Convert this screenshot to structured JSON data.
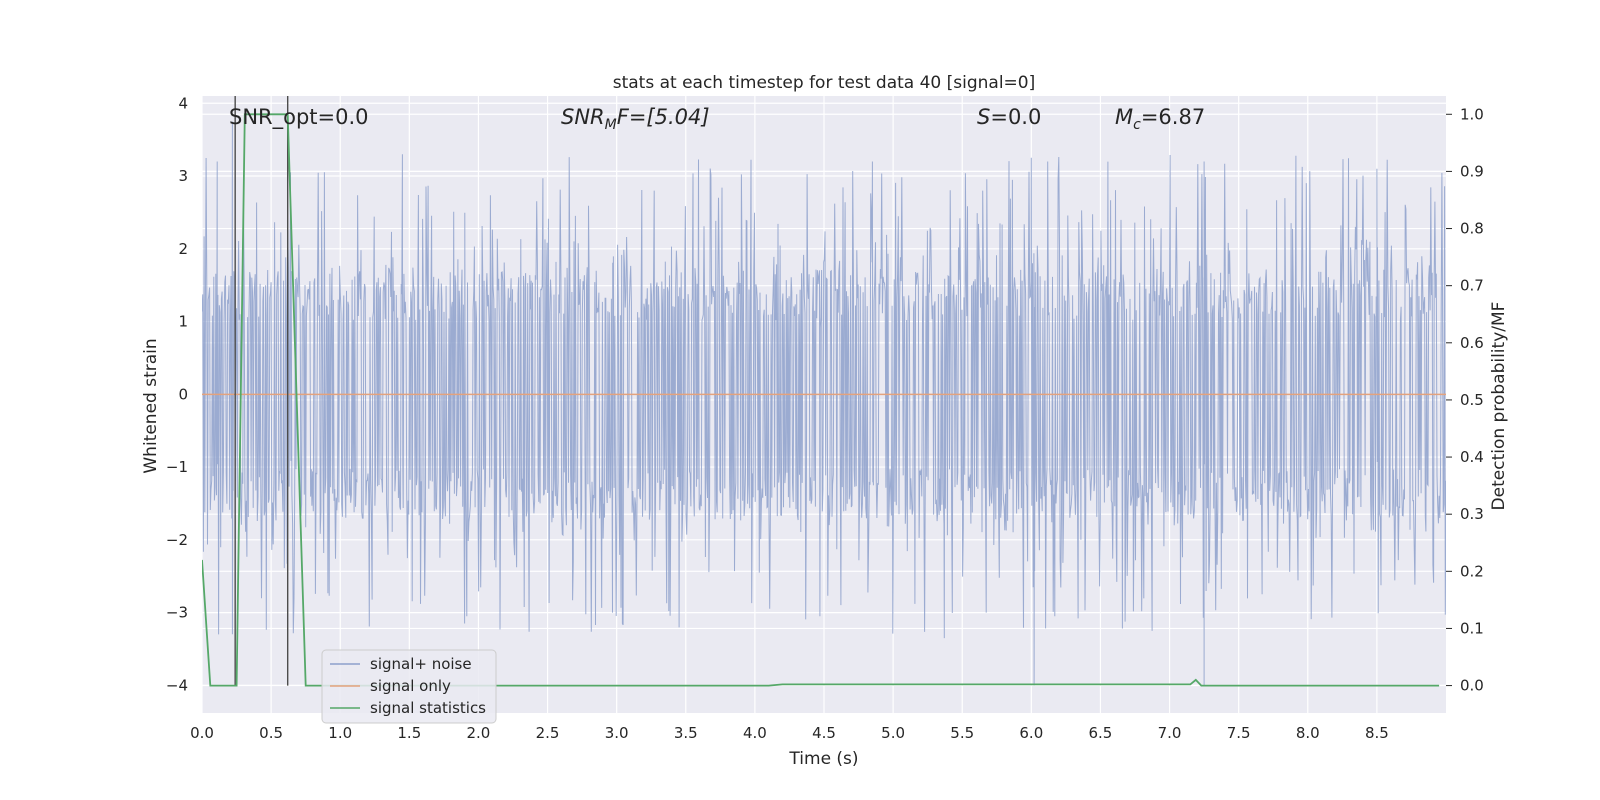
{
  "chart_data": {
    "type": "line",
    "title": "stats at each timestep for test data 40 [signal=0]",
    "xlabel": "Time (s)",
    "ylabel": "Whitened strain",
    "ylabel_right": "Detection probability/MF",
    "xlim": [
      0.0,
      9.0
    ],
    "ylim": [
      -4.38,
      4.1
    ],
    "ylim_right": [
      -0.048,
      1.032
    ],
    "x_ticks": [
      0.0,
      0.5,
      1.0,
      1.5,
      2.0,
      2.5,
      3.0,
      3.5,
      4.0,
      4.5,
      5.0,
      5.5,
      6.0,
      6.5,
      7.0,
      7.5,
      8.0,
      8.5
    ],
    "x_tick_labels": [
      "0.0",
      "0.5",
      "1.0",
      "1.5",
      "2.0",
      "2.5",
      "3.0",
      "3.5",
      "4.0",
      "4.5",
      "5.0",
      "5.5",
      "6.0",
      "6.5",
      "7.0",
      "7.5",
      "8.0",
      "8.5"
    ],
    "y_ticks": [
      4,
      3,
      2,
      1,
      0,
      -1,
      -2,
      -3,
      -4
    ],
    "y_tick_labels": [
      "4",
      "3",
      "2",
      "1",
      "0",
      "−1",
      "−2",
      "−3",
      "−4"
    ],
    "y_right_ticks": [
      1.0,
      0.9,
      0.8,
      0.7,
      0.6,
      0.5,
      0.4,
      0.3,
      0.2,
      0.1,
      0.0
    ],
    "y_right_tick_labels": [
      "1.0",
      "0.9",
      "0.8",
      "0.7",
      "0.6",
      "0.5",
      "0.4",
      "0.3",
      "0.2",
      "0.1",
      "0.0"
    ],
    "annotations": {
      "snr_opt": "SNR_opt=0.0",
      "snr_mf_label": "SNR",
      "snr_mf_sub": "M",
      "snr_mf_rest": "F=[5.04]",
      "s_label": "S",
      "s_value": "=0.0",
      "mc_label": "M",
      "mc_sub": "c",
      "mc_value": "=6.87"
    },
    "vertical_markers": [
      0.24,
      0.62
    ],
    "noise_band": {
      "core": [
        -1.7,
        1.7
      ],
      "peak": [
        -3.1,
        3.3
      ],
      "seed": 40,
      "samples": 1800
    },
    "noise_spikes": [
      {
        "x": 0.22,
        "y": 3.75
      },
      {
        "x": 0.11,
        "y": 3.2
      },
      {
        "x": 0.64,
        "y": 3.05
      },
      {
        "x": 6.02,
        "y": -4.0
      },
      {
        "x": 6.0,
        "y": 3.25
      },
      {
        "x": 7.25,
        "y": -4.0
      },
      {
        "x": 7.25,
        "y": 3.2
      },
      {
        "x": 1.9,
        "y": -3.15
      },
      {
        "x": 5.37,
        "y": -3.35
      },
      {
        "x": 4.47,
        "y": -3.05
      },
      {
        "x": 2.97,
        "y": -3.0
      },
      {
        "x": 4.85,
        "y": 3.2
      },
      {
        "x": 1.45,
        "y": 3.3
      },
      {
        "x": 8.5,
        "y": 3.1
      },
      {
        "x": 6.17,
        "y": -3.05
      }
    ],
    "series": [
      {
        "name": "signal+ noise",
        "color": "#8da0cb",
        "axis": "left",
        "kind": "noise"
      },
      {
        "name": "signal only",
        "color": "#e3a27d",
        "axis": "left",
        "x": [
          0.0,
          9.0
        ],
        "y": [
          0.0,
          0.0
        ]
      },
      {
        "name": "signal statistics",
        "color": "#55a868",
        "axis": "right",
        "x": [
          0.0,
          0.06,
          0.2,
          0.25,
          0.31,
          0.62,
          0.75,
          4.1,
          4.2,
          7.15,
          7.19,
          7.23,
          8.95
        ],
        "y": [
          0.22,
          0.0,
          0.0,
          0.0,
          1.0,
          1.0,
          0.0,
          0.0,
          0.002,
          0.002,
          0.01,
          0.0,
          0.0
        ]
      }
    ],
    "legend_position": "lower-left"
  }
}
